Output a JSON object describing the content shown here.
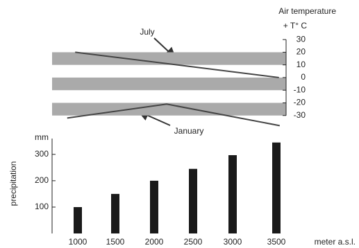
{
  "chart_data": [
    {
      "type": "line",
      "title": "Air temperature",
      "ylabel": "+ T° C",
      "xlim": [
        680,
        3620
      ],
      "ylim": [
        -40,
        35
      ],
      "yticks": [
        30,
        20,
        10,
        0,
        -10,
        -20,
        -30
      ],
      "bands": [
        [
          10,
          20
        ],
        [
          -10,
          0
        ],
        [
          -30,
          -20
        ]
      ],
      "band_color": "#aaaaaa",
      "series": [
        {
          "name": "July",
          "color": "#444444",
          "x": [
            970,
            3530
          ],
          "values": [
            20,
            0
          ]
        },
        {
          "name": "January",
          "color": "#444444",
          "x": [
            870,
            2120,
            3540
          ],
          "values": [
            -32,
            -21,
            -38
          ]
        }
      ]
    },
    {
      "type": "bar",
      "ylabel": "precipitation",
      "y_unit": "mm",
      "xlabel": "meter a.s.l.",
      "categories": [
        "1000",
        "1500",
        "2000",
        "2500",
        "3000",
        "3500"
      ],
      "values": [
        100,
        150,
        200,
        245,
        297,
        345
      ],
      "color": "#1a1a1a",
      "ylim": [
        0,
        360
      ],
      "yticks": [
        100,
        200,
        300
      ]
    }
  ]
}
